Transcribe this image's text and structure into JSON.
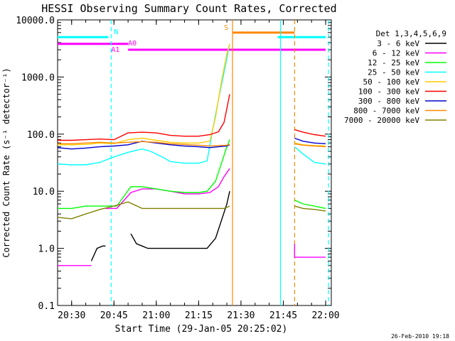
{
  "chart_data": {
    "type": "line",
    "title": "HESSI Observing Summary Count Rates, Corrected",
    "xlabel": "Start Time (29-Jan-05 20:25:02)",
    "ylabel": "Corrected Count Rate (s⁻¹ detector⁻¹)",
    "x_range_minutes": [
      "20:25",
      "22:02"
    ],
    "y_scale": "log",
    "ylim": [
      0.1,
      10000.0
    ],
    "x_ticks": [
      "20:30",
      "20:45",
      "21:00",
      "21:15",
      "21:30",
      "21:45",
      "22:00"
    ],
    "y_ticks": [
      "0.1",
      "1.0",
      "10.0",
      "100.0",
      "1000.0",
      "10000.0"
    ],
    "legend_title": "Det 1,3,4,5,6,9",
    "legend_position": "right",
    "series": [
      {
        "name": "3 - 6 keV",
        "color": "#000000",
        "segments": [
          [
            [
              "20:37",
              0.6
            ],
            [
              "20:39",
              1.0
            ],
            [
              "20:41",
              1.1
            ],
            [
              "20:42",
              1.1
            ]
          ],
          [
            [
              "20:51",
              1.8
            ],
            [
              "20:53",
              1.2
            ],
            [
              "20:55",
              1.1
            ],
            [
              "20:57",
              1.0
            ],
            [
              "21:00",
              1.0
            ],
            [
              "21:05",
              1.0
            ],
            [
              "21:10",
              1.0
            ],
            [
              "21:15",
              1.0
            ],
            [
              "21:18",
              1.0
            ],
            [
              "21:21",
              1.5
            ],
            [
              "21:23",
              3.0
            ],
            [
              "21:25",
              6.0
            ],
            [
              "21:26",
              10.0
            ]
          ]
        ]
      },
      {
        "name": "6 - 12 keV",
        "color": "#ff00ff",
        "segments": [
          [
            [
              "20:25",
              0.5
            ],
            [
              "20:29",
              0.5
            ],
            [
              "20:33",
              0.5
            ],
            [
              "20:37",
              0.5
            ]
          ],
          [
            [
              "20:42",
              5.0
            ],
            [
              "20:46",
              5.0
            ],
            [
              "20:51",
              9.5
            ],
            [
              "20:55",
              11.0
            ],
            [
              "21:00",
              11.0
            ],
            [
              "21:05",
              10.0
            ],
            [
              "21:10",
              9.0
            ],
            [
              "21:15",
              9.0
            ],
            [
              "21:19",
              9.5
            ],
            [
              "21:22",
              12.0
            ],
            [
              "21:24",
              18.0
            ],
            [
              "21:26",
              25.0
            ]
          ],
          [
            [
              "21:49",
              1.2
            ],
            [
              "21:49",
              0.7
            ],
            [
              "21:52",
              0.7
            ],
            [
              "21:55",
              0.7
            ],
            [
              "22:00",
              0.7
            ]
          ]
        ]
      },
      {
        "name": "12 - 25 keV",
        "color": "#00ff00",
        "segments": [
          [
            [
              "20:25",
              5.0
            ],
            [
              "20:30",
              5.0
            ],
            [
              "20:35",
              5.5
            ],
            [
              "20:40",
              5.5
            ],
            [
              "20:46",
              5.5
            ],
            [
              "20:51",
              12.0
            ],
            [
              "20:55",
              12.0
            ],
            [
              "21:00",
              11.0
            ],
            [
              "21:05",
              10.0
            ],
            [
              "21:10",
              9.5
            ],
            [
              "21:15",
              9.5
            ],
            [
              "21:18",
              10.0
            ],
            [
              "21:21",
              15.0
            ],
            [
              "21:23",
              30.0
            ],
            [
              "21:25",
              60.0
            ],
            [
              "21:26",
              80.0
            ]
          ],
          [
            [
              "21:49",
              7.0
            ],
            [
              "21:52",
              6.0
            ],
            [
              "21:56",
              5.5
            ],
            [
              "22:00",
              5.0
            ]
          ]
        ]
      },
      {
        "name": "25 - 50 keV",
        "color": "#00ffff",
        "segments": [
          [
            [
              "20:25",
              30.0
            ],
            [
              "20:30",
              29.0
            ],
            [
              "20:35",
              29.0
            ],
            [
              "20:40",
              32.0
            ],
            [
              "20:45",
              40.0
            ],
            [
              "20:50",
              48.0
            ],
            [
              "20:55",
              55.0
            ],
            [
              "20:58",
              50.0
            ],
            [
              "21:02",
              40.0
            ],
            [
              "21:05",
              33.0
            ],
            [
              "21:10",
              31.0
            ],
            [
              "21:15",
              31.0
            ],
            [
              "21:18",
              34.0
            ],
            [
              "21:20",
              120.0
            ],
            [
              "21:22",
              400.0
            ],
            [
              "21:24",
              1200.0
            ],
            [
              "21:26",
              3800.0
            ]
          ],
          [
            [
              "21:49",
              60.0
            ],
            [
              "21:52",
              45.0
            ],
            [
              "21:56",
              32.0
            ],
            [
              "22:00",
              30.0
            ]
          ]
        ]
      },
      {
        "name": "50 - 100 keV",
        "color": "#ffcc00",
        "segments": [
          [
            [
              "20:25",
              65.0
            ],
            [
              "20:30",
              65.0
            ],
            [
              "20:35",
              66.0
            ],
            [
              "20:40",
              70.0
            ],
            [
              "20:45",
              68.0
            ],
            [
              "20:50",
              80.0
            ],
            [
              "20:55",
              85.0
            ],
            [
              "21:00",
              78.0
            ],
            [
              "21:05",
              72.0
            ],
            [
              "21:10",
              70.0
            ],
            [
              "21:15",
              70.0
            ],
            [
              "21:19",
              75.0
            ],
            [
              "21:21",
              200.0
            ],
            [
              "21:23",
              800.0
            ],
            [
              "21:25",
              2500.0
            ],
            [
              "21:26",
              3800.0
            ]
          ],
          [
            [
              "21:49",
              70.0
            ],
            [
              "21:52",
              65.0
            ],
            [
              "21:56",
              63.0
            ],
            [
              "22:00",
              62.0
            ]
          ]
        ]
      },
      {
        "name": "100 - 300 keV",
        "color": "#ff0000",
        "segments": [
          [
            [
              "20:25",
              78.0
            ],
            [
              "20:30",
              78.0
            ],
            [
              "20:35",
              80.0
            ],
            [
              "20:40",
              82.0
            ],
            [
              "20:45",
              80.0
            ],
            [
              "20:50",
              105.0
            ],
            [
              "20:55",
              108.0
            ],
            [
              "21:00",
              105.0
            ],
            [
              "21:05",
              95.0
            ],
            [
              "21:10",
              92.0
            ],
            [
              "21:15",
              92.0
            ],
            [
              "21:19",
              98.0
            ],
            [
              "21:22",
              110.0
            ],
            [
              "21:24",
              160.0
            ],
            [
              "21:25",
              280.0
            ],
            [
              "21:26",
              500.0
            ]
          ],
          [
            [
              "21:49",
              120.0
            ],
            [
              "21:52",
              108.0
            ],
            [
              "21:56",
              98.0
            ],
            [
              "22:00",
              92.0
            ]
          ]
        ]
      },
      {
        "name": "300 - 800 keV",
        "color": "#0000cc",
        "segments": [
          [
            [
              "20:25",
              58.0
            ],
            [
              "20:30",
              55.0
            ],
            [
              "20:35",
              57.0
            ],
            [
              "20:40",
              60.0
            ],
            [
              "20:45",
              62.0
            ],
            [
              "20:50",
              65.0
            ],
            [
              "20:55",
              75.0
            ],
            [
              "21:00",
              70.0
            ],
            [
              "21:05",
              65.0
            ],
            [
              "21:10",
              62.0
            ],
            [
              "21:15",
              60.0
            ],
            [
              "21:19",
              58.0
            ],
            [
              "21:22",
              60.0
            ],
            [
              "21:25",
              62.0
            ],
            [
              "21:26",
              65.0
            ]
          ],
          [
            [
              "21:49",
              85.0
            ],
            [
              "21:52",
              75.0
            ],
            [
              "21:56",
              70.0
            ],
            [
              "22:00",
              68.0
            ]
          ]
        ]
      },
      {
        "name": "800 - 7000 keV",
        "color": "#ff8800",
        "segments": [
          [
            [
              "20:25",
              68.0
            ],
            [
              "20:30",
              68.0
            ],
            [
              "20:35",
              70.0
            ],
            [
              "20:40",
              72.0
            ],
            [
              "20:45",
              70.0
            ],
            [
              "20:50",
              72.0
            ],
            [
              "20:55",
              74.0
            ],
            [
              "21:00",
              72.0
            ],
            [
              "21:05",
              68.0
            ],
            [
              "21:10",
              66.0
            ],
            [
              "21:15",
              64.0
            ],
            [
              "21:19",
              62.0
            ],
            [
              "21:22",
              63.0
            ],
            [
              "21:25",
              64.0
            ],
            [
              "21:26",
              66.0
            ]
          ],
          [
            [
              "21:49",
              68.0
            ],
            [
              "21:52",
              64.0
            ],
            [
              "21:56",
              62.0
            ],
            [
              "22:00",
              60.0
            ]
          ]
        ]
      },
      {
        "name": "7000 - 20000 keV",
        "color": "#808000",
        "segments": [
          [
            [
              "20:25",
              3.5
            ],
            [
              "20:30",
              3.3
            ],
            [
              "20:35",
              4.0
            ],
            [
              "20:40",
              4.8
            ],
            [
              "20:45",
              5.5
            ],
            [
              "20:50",
              6.5
            ],
            [
              "20:55",
              5.0
            ],
            [
              "21:00",
              5.0
            ],
            [
              "21:05",
              5.0
            ],
            [
              "21:10",
              5.0
            ],
            [
              "21:15",
              5.0
            ],
            [
              "21:20",
              5.0
            ],
            [
              "21:24",
              5.0
            ],
            [
              "21:26",
              5.5
            ]
          ],
          [
            [
              "21:49",
              5.5
            ],
            [
              "21:52",
              5.0
            ],
            [
              "21:56",
              4.8
            ],
            [
              "22:00",
              4.5
            ]
          ]
        ]
      }
    ],
    "flags": [
      {
        "label": "N",
        "color": "#00ffff",
        "y": 5000,
        "segments": [
          [
            "20:25",
            "20:43"
          ],
          [
            "21:43",
            "22:00"
          ]
        ]
      },
      {
        "label": "A0",
        "color": "#ff00ff",
        "y": 3800,
        "segments": [
          [
            "20:25",
            "20:50"
          ]
        ]
      },
      {
        "label": "A1",
        "color": "#ff00ff",
        "y": 3000,
        "segments": [
          [
            "20:50",
            "22:00"
          ]
        ]
      },
      {
        "label": "S",
        "color": "#ff8800",
        "y": 6000,
        "segments": [
          [
            "21:27",
            "21:49"
          ]
        ]
      }
    ],
    "vertical_lines": [
      {
        "time": "20:44",
        "color": "#00ffff",
        "style": "dashed"
      },
      {
        "time": "21:27",
        "color": "#ff8800",
        "style": "solid"
      },
      {
        "time": "21:44",
        "color": "#00ffff",
        "style": "solid"
      },
      {
        "time": "21:49",
        "color": "#ff8800",
        "style": "dashed"
      },
      {
        "time": "22:01",
        "color": "#00ffff",
        "style": "dashed"
      }
    ]
  },
  "footer_date": "26-Feb-2010 19:18"
}
